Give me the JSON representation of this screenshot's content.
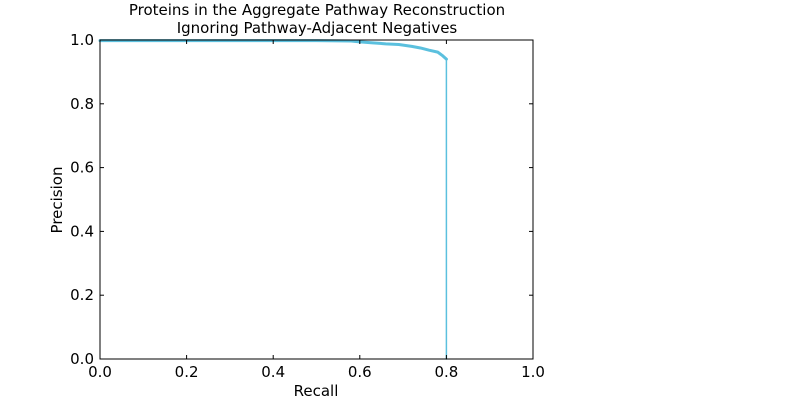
{
  "chart_data": {
    "type": "line",
    "title_lines": [
      "Proteins in the Aggregate Pathway Reconstruction",
      "Ignoring Pathway-Adjacent Negatives"
    ],
    "xlabel": "Recall",
    "ylabel": "Precision",
    "xlim": [
      0.0,
      1.0
    ],
    "ylim": [
      0.0,
      1.0
    ],
    "xticks": [
      "0.0",
      "0.2",
      "0.4",
      "0.6",
      "0.8",
      "1.0"
    ],
    "yticks": [
      "0.0",
      "0.2",
      "0.4",
      "0.6",
      "0.8",
      "1.0"
    ],
    "grid": false,
    "series": [
      {
        "color": "#5bc0de",
        "x": [
          0.0,
          0.1,
          0.2,
          0.3,
          0.4,
          0.5,
          0.58,
          0.6,
          0.63,
          0.66,
          0.69,
          0.72,
          0.74,
          0.76,
          0.78,
          0.79,
          0.8,
          0.8
        ],
        "y": [
          0.998,
          0.998,
          0.998,
          0.998,
          0.998,
          0.998,
          0.997,
          0.994,
          0.991,
          0.988,
          0.986,
          0.98,
          0.975,
          0.968,
          0.962,
          0.952,
          0.94,
          0.0
        ]
      }
    ]
  }
}
